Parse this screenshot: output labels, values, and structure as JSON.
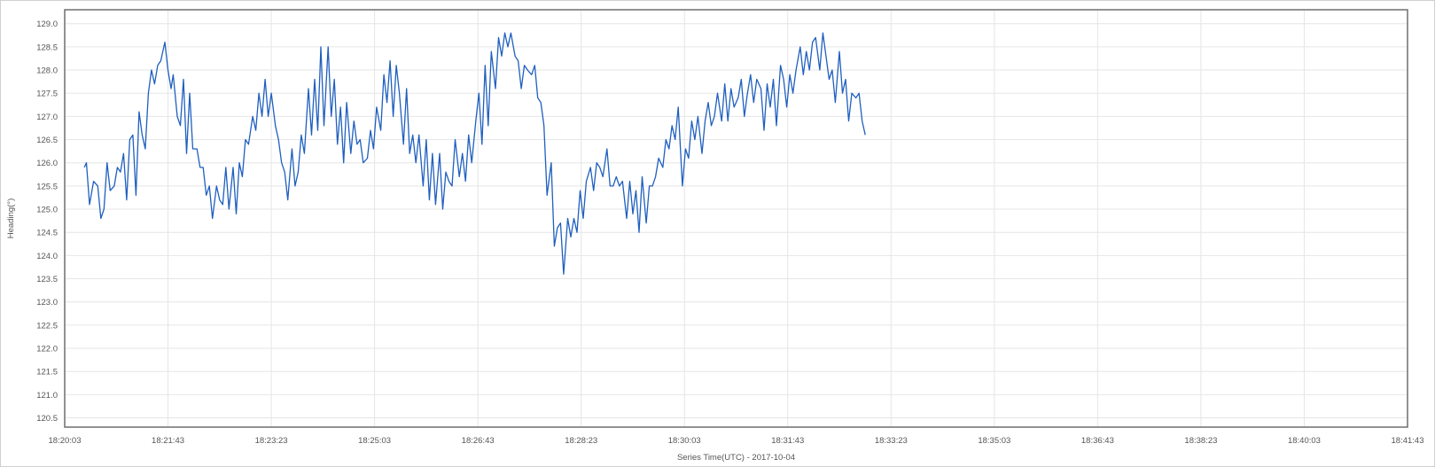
{
  "chart_data": {
    "type": "line",
    "title": "",
    "xlabel": "Series Time(UTC) - 2017-10-04",
    "ylabel": "Heading(°)",
    "ylim": [
      120.3,
      129.3
    ],
    "yticks": [
      "129.0",
      "128.5",
      "128.0",
      "127.5",
      "127.0",
      "126.5",
      "126.0",
      "125.5",
      "125.0",
      "124.5",
      "124.0",
      "123.5",
      "123.0",
      "122.5",
      "122.0",
      "121.5",
      "121.0",
      "120.5"
    ],
    "xlim": [
      "18:20:03",
      "18:41:43"
    ],
    "xticks": [
      "18:20:03",
      "18:21:43",
      "18:23:23",
      "18:25:03",
      "18:26:43",
      "18:28:23",
      "18:30:03",
      "18:31:43",
      "18:33:23",
      "18:35:03",
      "18:36:43",
      "18:38:23",
      "18:40:03",
      "18:41:43"
    ],
    "grid": true,
    "colors": {
      "line": "#1f5fbf",
      "grid": "#e6e6e6",
      "frame": "#6e6e6e"
    },
    "series": [
      {
        "values": [
          [
            "18:20:22",
            125.9
          ],
          [
            "18:20:24",
            126.0
          ],
          [
            "18:20:27",
            125.1
          ],
          [
            "18:20:31",
            125.6
          ],
          [
            "18:20:35",
            125.5
          ],
          [
            "18:20:38",
            124.8
          ],
          [
            "18:20:41",
            125.0
          ],
          [
            "18:20:44",
            126.0
          ],
          [
            "18:20:47",
            125.4
          ],
          [
            "18:20:51",
            125.5
          ],
          [
            "18:20:54",
            125.9
          ],
          [
            "18:20:57",
            125.8
          ],
          [
            "18:21:00",
            126.2
          ],
          [
            "18:21:03",
            125.2
          ],
          [
            "18:21:06",
            126.5
          ],
          [
            "18:21:09",
            126.6
          ],
          [
            "18:21:12",
            125.3
          ],
          [
            "18:21:15",
            127.1
          ],
          [
            "18:21:18",
            126.6
          ],
          [
            "18:21:21",
            126.3
          ],
          [
            "18:21:24",
            127.5
          ],
          [
            "18:21:27",
            128.0
          ],
          [
            "18:21:30",
            127.7
          ],
          [
            "18:21:33",
            128.1
          ],
          [
            "18:21:36",
            128.2
          ],
          [
            "18:21:40",
            128.6
          ],
          [
            "18:21:43",
            128.0
          ],
          [
            "18:21:46",
            127.6
          ],
          [
            "18:21:48",
            127.9
          ],
          [
            "18:21:52",
            127.0
          ],
          [
            "18:21:55",
            126.8
          ],
          [
            "18:21:58",
            127.8
          ],
          [
            "18:22:01",
            126.2
          ],
          [
            "18:22:04",
            127.5
          ],
          [
            "18:22:07",
            126.3
          ],
          [
            "18:22:11",
            126.3
          ],
          [
            "18:22:14",
            125.9
          ],
          [
            "18:22:17",
            125.9
          ],
          [
            "18:22:20",
            125.3
          ],
          [
            "18:22:23",
            125.5
          ],
          [
            "18:22:26",
            124.8
          ],
          [
            "18:22:30",
            125.5
          ],
          [
            "18:22:33",
            125.2
          ],
          [
            "18:22:36",
            125.1
          ],
          [
            "18:22:39",
            125.9
          ],
          [
            "18:22:42",
            125.0
          ],
          [
            "18:22:46",
            125.9
          ],
          [
            "18:22:49",
            124.9
          ],
          [
            "18:22:52",
            126.0
          ],
          [
            "18:22:55",
            125.7
          ],
          [
            "18:22:58",
            126.5
          ],
          [
            "18:23:01",
            126.4
          ],
          [
            "18:23:05",
            127.0
          ],
          [
            "18:23:08",
            126.7
          ],
          [
            "18:23:11",
            127.5
          ],
          [
            "18:23:14",
            127.0
          ],
          [
            "18:23:17",
            127.8
          ],
          [
            "18:23:20",
            127.0
          ],
          [
            "18:23:23",
            127.5
          ],
          [
            "18:23:27",
            126.8
          ],
          [
            "18:23:30",
            126.5
          ],
          [
            "18:23:33",
            126.0
          ],
          [
            "18:23:36",
            125.8
          ],
          [
            "18:23:39",
            125.2
          ],
          [
            "18:23:43",
            126.3
          ],
          [
            "18:23:46",
            125.5
          ],
          [
            "18:23:49",
            125.8
          ],
          [
            "18:23:52",
            126.6
          ],
          [
            "18:23:55",
            126.2
          ],
          [
            "18:23:59",
            127.6
          ],
          [
            "18:24:02",
            126.6
          ],
          [
            "18:24:05",
            127.8
          ],
          [
            "18:24:08",
            126.7
          ],
          [
            "18:24:11",
            128.5
          ],
          [
            "18:24:14",
            126.8
          ],
          [
            "18:24:18",
            128.5
          ],
          [
            "18:24:21",
            127.0
          ],
          [
            "18:24:24",
            127.8
          ],
          [
            "18:24:27",
            126.4
          ],
          [
            "18:24:30",
            127.2
          ],
          [
            "18:24:33",
            126.0
          ],
          [
            "18:24:36",
            127.3
          ],
          [
            "18:24:40",
            126.2
          ],
          [
            "18:24:43",
            126.9
          ],
          [
            "18:24:46",
            126.4
          ],
          [
            "18:24:49",
            126.5
          ],
          [
            "18:24:52",
            126.0
          ],
          [
            "18:24:56",
            126.1
          ],
          [
            "18:24:59",
            126.7
          ],
          [
            "18:25:02",
            126.3
          ],
          [
            "18:25:05",
            127.2
          ],
          [
            "18:25:09",
            126.7
          ],
          [
            "18:25:12",
            127.9
          ],
          [
            "18:25:15",
            127.3
          ],
          [
            "18:25:18",
            128.2
          ],
          [
            "18:25:21",
            127.0
          ],
          [
            "18:25:24",
            128.1
          ],
          [
            "18:25:27",
            127.5
          ],
          [
            "18:25:31",
            126.4
          ],
          [
            "18:25:34",
            127.6
          ],
          [
            "18:25:37",
            126.2
          ],
          [
            "18:25:40",
            126.6
          ],
          [
            "18:25:43",
            126.0
          ],
          [
            "18:25:46",
            126.6
          ],
          [
            "18:25:50",
            125.5
          ],
          [
            "18:25:53",
            126.5
          ],
          [
            "18:25:56",
            125.2
          ],
          [
            "18:25:59",
            126.2
          ],
          [
            "18:26:02",
            125.1
          ],
          [
            "18:26:06",
            126.2
          ],
          [
            "18:26:09",
            125.0
          ],
          [
            "18:26:12",
            125.8
          ],
          [
            "18:26:15",
            125.6
          ],
          [
            "18:26:18",
            125.5
          ],
          [
            "18:26:21",
            126.5
          ],
          [
            "18:26:25",
            125.7
          ],
          [
            "18:26:28",
            126.2
          ],
          [
            "18:26:31",
            125.6
          ],
          [
            "18:26:34",
            126.6
          ],
          [
            "18:26:37",
            126.0
          ],
          [
            "18:26:41",
            126.9
          ],
          [
            "18:26:44",
            127.5
          ],
          [
            "18:26:47",
            126.4
          ],
          [
            "18:26:50",
            128.1
          ],
          [
            "18:26:53",
            126.8
          ],
          [
            "18:26:56",
            128.4
          ],
          [
            "18:27:00",
            127.6
          ],
          [
            "18:27:03",
            128.7
          ],
          [
            "18:27:06",
            128.3
          ],
          [
            "18:27:09",
            128.8
          ],
          [
            "18:27:12",
            128.5
          ],
          [
            "18:27:15",
            128.8
          ],
          [
            "18:27:19",
            128.3
          ],
          [
            "18:27:22",
            128.2
          ],
          [
            "18:27:25",
            127.6
          ],
          [
            "18:27:28",
            128.1
          ],
          [
            "18:27:31",
            128.0
          ],
          [
            "18:27:35",
            127.9
          ],
          [
            "18:27:38",
            128.1
          ],
          [
            "18:27:41",
            127.4
          ],
          [
            "18:27:44",
            127.3
          ],
          [
            "18:27:47",
            126.8
          ],
          [
            "18:27:50",
            125.3
          ],
          [
            "18:27:54",
            126.0
          ],
          [
            "18:27:57",
            124.2
          ],
          [
            "18:28:00",
            124.6
          ],
          [
            "18:28:03",
            124.7
          ],
          [
            "18:28:06",
            123.6
          ],
          [
            "18:28:10",
            124.8
          ],
          [
            "18:28:13",
            124.4
          ],
          [
            "18:28:16",
            124.8
          ],
          [
            "18:28:19",
            124.5
          ],
          [
            "18:28:22",
            125.4
          ],
          [
            "18:28:25",
            124.8
          ],
          [
            "18:28:28",
            125.6
          ],
          [
            "18:28:32",
            125.9
          ],
          [
            "18:28:35",
            125.4
          ],
          [
            "18:28:38",
            126.0
          ],
          [
            "18:28:41",
            125.9
          ],
          [
            "18:28:44",
            125.7
          ],
          [
            "18:28:48",
            126.3
          ],
          [
            "18:28:51",
            125.5
          ],
          [
            "18:28:54",
            125.5
          ],
          [
            "18:28:57",
            125.7
          ],
          [
            "18:29:00",
            125.5
          ],
          [
            "18:29:03",
            125.6
          ],
          [
            "18:29:07",
            124.8
          ],
          [
            "18:29:10",
            125.6
          ],
          [
            "18:29:13",
            124.9
          ],
          [
            "18:29:16",
            125.4
          ],
          [
            "18:29:19",
            124.5
          ],
          [
            "18:29:22",
            125.7
          ],
          [
            "18:29:26",
            124.7
          ],
          [
            "18:29:29",
            125.5
          ],
          [
            "18:29:32",
            125.5
          ],
          [
            "18:29:35",
            125.7
          ],
          [
            "18:29:38",
            126.1
          ],
          [
            "18:29:42",
            125.9
          ],
          [
            "18:29:45",
            126.5
          ],
          [
            "18:29:48",
            126.3
          ],
          [
            "18:29:51",
            126.8
          ],
          [
            "18:29:54",
            126.5
          ],
          [
            "18:29:57",
            127.2
          ],
          [
            "18:30:01",
            125.5
          ],
          [
            "18:30:04",
            126.3
          ],
          [
            "18:30:07",
            126.1
          ],
          [
            "18:30:10",
            126.9
          ],
          [
            "18:30:13",
            126.5
          ],
          [
            "18:30:16",
            127.0
          ],
          [
            "18:30:20",
            126.2
          ],
          [
            "18:30:23",
            126.9
          ],
          [
            "18:30:26",
            127.3
          ],
          [
            "18:30:29",
            126.8
          ],
          [
            "18:30:32",
            127.0
          ],
          [
            "18:30:35",
            127.5
          ],
          [
            "18:30:39",
            126.9
          ],
          [
            "18:30:42",
            127.7
          ],
          [
            "18:30:45",
            126.9
          ],
          [
            "18:30:48",
            127.6
          ],
          [
            "18:30:51",
            127.2
          ],
          [
            "18:30:55",
            127.4
          ],
          [
            "18:30:58",
            127.8
          ],
          [
            "18:31:01",
            127.0
          ],
          [
            "18:31:04",
            127.5
          ],
          [
            "18:31:07",
            127.9
          ],
          [
            "18:31:10",
            127.3
          ],
          [
            "18:31:13",
            127.8
          ],
          [
            "18:31:17",
            127.6
          ],
          [
            "18:31:20",
            126.7
          ],
          [
            "18:31:23",
            127.7
          ],
          [
            "18:31:26",
            127.2
          ],
          [
            "18:31:29",
            127.8
          ],
          [
            "18:31:32",
            126.8
          ],
          [
            "18:31:36",
            128.1
          ],
          [
            "18:31:39",
            127.8
          ],
          [
            "18:31:42",
            127.2
          ],
          [
            "18:31:45",
            127.9
          ],
          [
            "18:31:48",
            127.5
          ],
          [
            "18:31:51",
            128.0
          ],
          [
            "18:31:55",
            128.5
          ],
          [
            "18:31:58",
            127.9
          ],
          [
            "18:32:01",
            128.4
          ],
          [
            "18:32:04",
            128.0
          ],
          [
            "18:32:07",
            128.6
          ],
          [
            "18:32:10",
            128.7
          ],
          [
            "18:32:14",
            128.0
          ],
          [
            "18:32:17",
            128.8
          ],
          [
            "18:32:20",
            128.3
          ],
          [
            "18:32:23",
            127.8
          ],
          [
            "18:32:26",
            128.0
          ],
          [
            "18:32:29",
            127.3
          ],
          [
            "18:32:33",
            128.4
          ],
          [
            "18:32:36",
            127.5
          ],
          [
            "18:32:39",
            127.8
          ],
          [
            "18:32:42",
            126.9
          ],
          [
            "18:32:45",
            127.5
          ],
          [
            "18:32:49",
            127.4
          ],
          [
            "18:32:52",
            127.5
          ],
          [
            "18:32:55",
            126.9
          ],
          [
            "18:32:58",
            126.6
          ]
        ]
      }
    ]
  }
}
